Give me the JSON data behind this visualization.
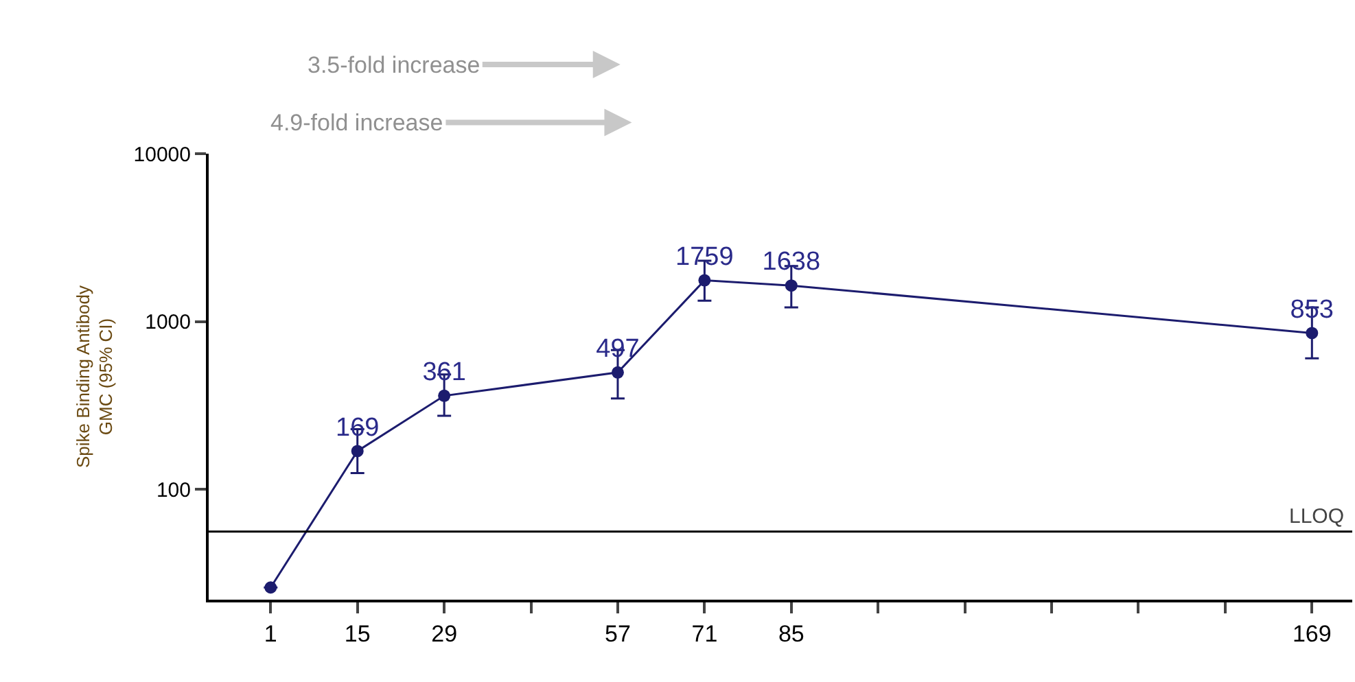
{
  "chart_data": {
    "type": "line",
    "ylabel": "Spike Binding Antibody\nGMC (95% CI)",
    "x": [
      1,
      15,
      29,
      57,
      71,
      85,
      169
    ],
    "series": [
      {
        "color": "#1c1c6e",
        "values": [
          26,
          169,
          361,
          497,
          1759,
          1638,
          853
        ],
        "errors": [
          null,
          [
            125,
            228
          ],
          [
            274,
            484
          ],
          [
            348,
            675
          ],
          [
            1330,
            2300
          ],
          [
            1215,
            2140
          ],
          [
            604,
            1215
          ]
        ],
        "value_labels": [
          null,
          "169",
          "361",
          "497",
          "1759",
          "1638",
          "853"
        ]
      }
    ],
    "xlim": [
      -9,
      175.5
    ],
    "xticks": [
      1,
      15,
      29,
      {
        "value": 43,
        "label": null
      },
      57,
      71,
      85,
      {
        "value": 99,
        "label": null
      },
      {
        "value": 113,
        "label": null
      },
      {
        "value": 127,
        "label": null
      },
      {
        "value": 141,
        "label": null
      },
      {
        "value": 155,
        "label": null
      },
      169
    ],
    "ylim": [
      22,
      10000
    ],
    "yticks": [
      100,
      1000,
      10000
    ],
    "log": true,
    "marker": "circle",
    "line_style": "solid",
    "ref_lines": [
      {
        "axis": "y",
        "value": 56,
        "label": "LLOQ",
        "color": "#000000"
      }
    ],
    "annotations": [
      "3.5-fold increase",
      "4.9-fold increase"
    ]
  }
}
